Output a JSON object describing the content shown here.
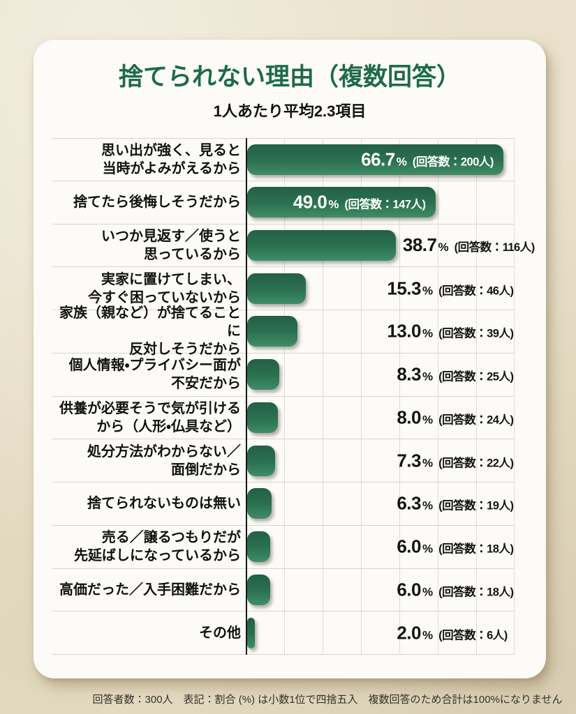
{
  "page": {
    "title": "捨てられない理由（複数回答）",
    "subtitle": "1人あたり平均2.3項目",
    "footer_note": "回答者数：300人　表記：割合 (%) は小数1位で四捨五入　複数回答のため合計は100%になりません"
  },
  "strings": {
    "percent": "%"
  },
  "colors": {
    "title_green": "#1d6b48",
    "bar_top": "#245f46",
    "bar_mid": "#2a7050",
    "bar_bottom": "#3f8d66",
    "card_bg": "#fcfbf7",
    "grid_line": "#dedcd4",
    "sep_line": "#d7d5cd"
  },
  "chart_data": {
    "type": "bar",
    "orientation": "horizontal",
    "title": "捨てられない理由（複数回答）",
    "subtitle": "1人あたり平均2.3項目",
    "unit": "%",
    "xlim": [
      0,
      70
    ],
    "grid_step": 10,
    "grid": true,
    "legend": false,
    "categories": [
      "思い出が強く、見ると当時がよみがえるから",
      "捨てたら後悔しそうだから",
      "いつか見返す／使うと思っているから",
      "実家に置けてしまい、今すぐ困っていないから",
      "家族（親など）が捨てることに反対しそうだから",
      "個人情報・プライバシー面が不安だから",
      "供養が必要そうで気が引けるから（人形・仏具など）",
      "処分方法がわからない／面倒だから",
      "捨てられないものは無い",
      "売る／譲るつもりだが先延ばしになっているから",
      "高価だった／入手困難だから",
      "その他"
    ],
    "values": [
      66.7,
      49.0,
      38.7,
      15.3,
      13.0,
      8.3,
      8.0,
      7.3,
      6.3,
      6.0,
      6.0,
      2.0
    ],
    "counts": [
      200,
      147,
      116,
      46,
      39,
      25,
      24,
      22,
      19,
      18,
      18,
      6
    ],
    "rows": [
      {
        "label_lines": [
          "思い出が強く、見ると",
          "当時がよみがえるから"
        ],
        "value": 66.7,
        "count": 200,
        "value_label": "66.7",
        "count_label": "(回答数：200人)",
        "value_position": "inside"
      },
      {
        "label_lines": [
          "捨てたら後悔しそうだから"
        ],
        "value": 49.0,
        "count": 147,
        "value_label": "49.0",
        "count_label": "(回答数：147人)",
        "value_position": "inside"
      },
      {
        "label_lines": [
          "いつか見返す／使うと",
          "思っているから"
        ],
        "value": 38.7,
        "count": 116,
        "value_label": "38.7",
        "count_label": "(回答数：116人)",
        "value_position": "after"
      },
      {
        "label_lines": [
          "実家に置けてしまい、",
          "今すぐ困っていないから"
        ],
        "value": 15.3,
        "count": 46,
        "value_label": "15.3",
        "count_label": "(回答数：46人)",
        "value_position": "fixed"
      },
      {
        "label_lines": [
          "家族（親など）が捨てることに",
          "反対しそうだから"
        ],
        "value": 13.0,
        "count": 39,
        "value_label": "13.0",
        "count_label": "(回答数：39人)",
        "value_position": "fixed"
      },
      {
        "label_lines": [
          "個人情報・プライバシー面が",
          "不安だから"
        ],
        "value": 8.3,
        "count": 25,
        "value_label": "8.3",
        "count_label": "(回答数：25人)",
        "value_position": "fixed"
      },
      {
        "label_lines": [
          "供養が必要そうで気が引ける",
          "から（人形・仏具など）"
        ],
        "value": 8.0,
        "count": 24,
        "value_label": "8.0",
        "count_label": "(回答数：24人)",
        "value_position": "fixed"
      },
      {
        "label_lines": [
          "処分方法がわからない／",
          "面倒だから"
        ],
        "value": 7.3,
        "count": 22,
        "value_label": "7.3",
        "count_label": "(回答数：22人)",
        "value_position": "fixed"
      },
      {
        "label_lines": [
          "捨てられないものは無い"
        ],
        "value": 6.3,
        "count": 19,
        "value_label": "6.3",
        "count_label": "(回答数：19人)",
        "value_position": "fixed"
      },
      {
        "label_lines": [
          "売る／譲るつもりだが",
          "先延ばしになっているから"
        ],
        "value": 6.0,
        "count": 18,
        "value_label": "6.0",
        "count_label": "(回答数：18人)",
        "value_position": "fixed"
      },
      {
        "label_lines": [
          "高価だった／入手困難だから"
        ],
        "value": 6.0,
        "count": 18,
        "value_label": "6.0",
        "count_label": "(回答数：18人)",
        "value_position": "fixed"
      },
      {
        "label_lines": [
          "その他"
        ],
        "value": 2.0,
        "count": 6,
        "value_label": "2.0",
        "count_label": "(回答数：6人)",
        "value_position": "fixed"
      }
    ]
  }
}
